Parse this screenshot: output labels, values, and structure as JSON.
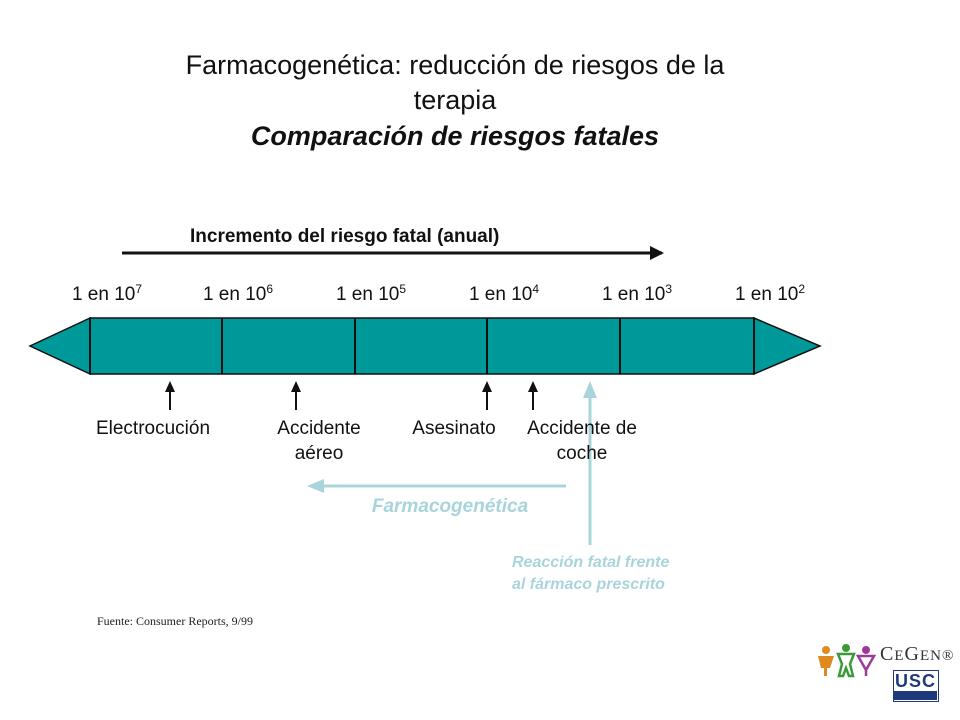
{
  "title": {
    "line1": "Farmacogenética: reducción de riesgos de la",
    "line2": "terapia",
    "subtitle": "Comparación de riesgos fatales"
  },
  "scale": {
    "increment_label": "Incremento del riesgo fatal (anual)",
    "ticks": [
      {
        "prefix": "1 en 10",
        "exp": "7"
      },
      {
        "prefix": "1 en 10",
        "exp": "6"
      },
      {
        "prefix": "1 en 10",
        "exp": "5"
      },
      {
        "prefix": "1 en 10",
        "exp": "4"
      },
      {
        "prefix": "1 en 10",
        "exp": "3"
      },
      {
        "prefix": "1 en 10",
        "exp": "2"
      }
    ],
    "bar_color": "#00999a"
  },
  "events": [
    {
      "line1": "Electrocución",
      "line2": ""
    },
    {
      "line1": "Accidente",
      "line2": "aéreo"
    },
    {
      "line1": "Asesinato",
      "line2": ""
    },
    {
      "line1": "Accidente de",
      "line2": "coche"
    }
  ],
  "pharmacogenetics_label": "Farmacogenética",
  "reaction": {
    "line1": "Reacción fatal frente",
    "line2": "al fármaco prescrito"
  },
  "accent_color": "#a9d4dc",
  "source": "Fuente: Consumer Reports, 9/99",
  "logos": {
    "cegen_C": "C",
    "cegen_e": "E",
    "cegen_G": "G",
    "cegen_en": "EN",
    "cegen_reg": "®",
    "usc": "USC"
  }
}
